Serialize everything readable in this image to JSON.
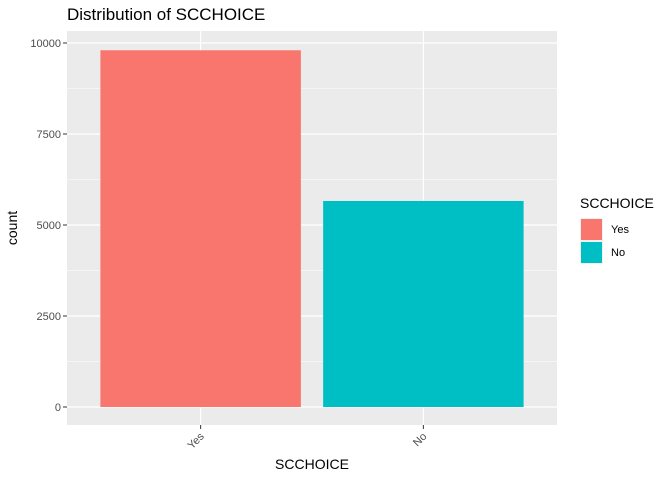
{
  "chart_data": {
    "type": "bar",
    "title": "Distribution of SCCHOICE",
    "xlabel": "SCCHOICE",
    "ylabel": "count",
    "categories": [
      "Yes",
      "No"
    ],
    "values": [
      9800,
      5660
    ],
    "ylim": [
      0,
      10000
    ],
    "yticks": [
      0,
      2500,
      5000,
      7500,
      10000
    ],
    "ytick_labels": [
      "0",
      "2500",
      "5000",
      "7500",
      "10000"
    ],
    "grid": true,
    "legend": {
      "title": "SCCHOICE",
      "position": "right",
      "items": [
        "Yes",
        "No"
      ]
    },
    "colors": {
      "Yes": "#F8766D",
      "No": "#00BFC4",
      "panel_background": "#EBEBEB",
      "grid_line": "#FFFFFF",
      "text": "#000000",
      "tick_text": "#4D4D4D"
    }
  }
}
